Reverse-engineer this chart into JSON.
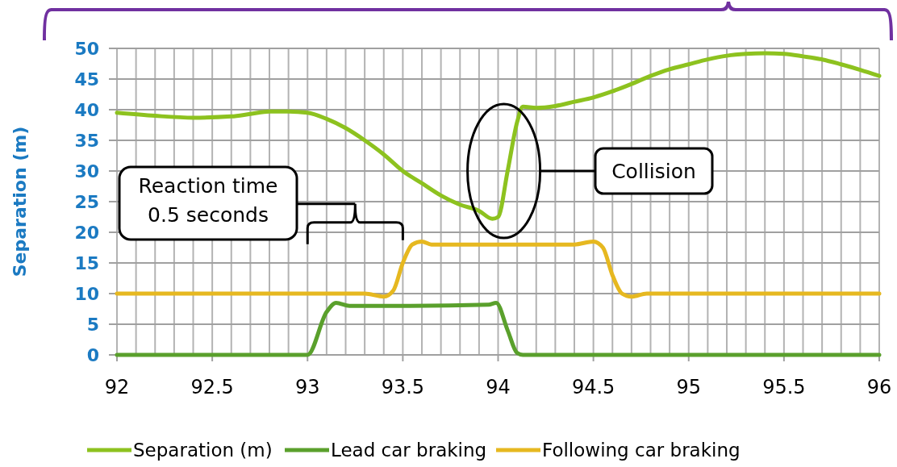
{
  "chart_data": {
    "type": "line",
    "ylabel": "Separation (m)",
    "xlim": [
      92,
      96
    ],
    "ylim": [
      0,
      50
    ],
    "xticks": [
      92,
      92.5,
      93,
      93.5,
      94,
      94.5,
      95,
      95.5,
      96
    ],
    "yticks": [
      0,
      5,
      10,
      15,
      20,
      25,
      30,
      35,
      40,
      45,
      50
    ],
    "grid": true,
    "legend": "bottom",
    "marker": "none",
    "line_style": "solid",
    "series": [
      {
        "name": "Separation (m)",
        "color": "#8dc21f",
        "x": [
          92,
          92.2,
          92.4,
          92.6,
          92.7,
          92.8,
          92.9,
          93,
          93.1,
          93.2,
          93.3,
          93.4,
          93.5,
          93.6,
          93.7,
          93.8,
          93.9,
          93.97,
          94,
          94.05,
          94.1,
          94.13,
          94.2,
          94.3,
          94.4,
          94.5,
          94.6,
          94.7,
          94.8,
          94.9,
          95,
          95.1,
          95.2,
          95.3,
          95.4,
          95.5,
          95.6,
          95.7,
          95.8,
          95.9,
          96
        ],
        "values": [
          39.5,
          39,
          38.7,
          38.9,
          39.3,
          39.7,
          39.7,
          39.5,
          38.5,
          37,
          35,
          32.7,
          30,
          28,
          26,
          24.5,
          23.5,
          22.2,
          22.5,
          30,
          38,
          40.5,
          40.3,
          40.6,
          41.3,
          42,
          43,
          44.2,
          45.5,
          46.6,
          47.4,
          48.2,
          48.8,
          49.1,
          49.2,
          49.1,
          48.7,
          48.2,
          47.4,
          46.5,
          45.5
        ]
      },
      {
        "name": "Lead car braking",
        "color": "#5aa02c",
        "x": [
          92,
          92.9,
          93,
          93.1,
          93.15,
          93.22,
          93.5,
          93.95,
          93.99,
          94.05,
          94.1,
          94.13,
          96
        ],
        "values": [
          0,
          0,
          0,
          7,
          8.5,
          8,
          8,
          8.2,
          8.5,
          4,
          0.3,
          0,
          0
        ]
      },
      {
        "name": "Following car braking",
        "color": "#e6b820",
        "x": [
          92,
          93.3,
          93.4,
          93.45,
          93.5,
          93.55,
          93.6,
          93.65,
          94.4,
          94.5,
          94.55,
          94.6,
          94.65,
          94.7,
          94.78,
          96
        ],
        "values": [
          10,
          10,
          9.5,
          10.5,
          15,
          18,
          18.5,
          18,
          18,
          18.5,
          17.5,
          13,
          10,
          9.5,
          10,
          10
        ]
      }
    ],
    "annotations": [
      "Reaction time\n0.5 seconds",
      "Collision"
    ]
  }
}
